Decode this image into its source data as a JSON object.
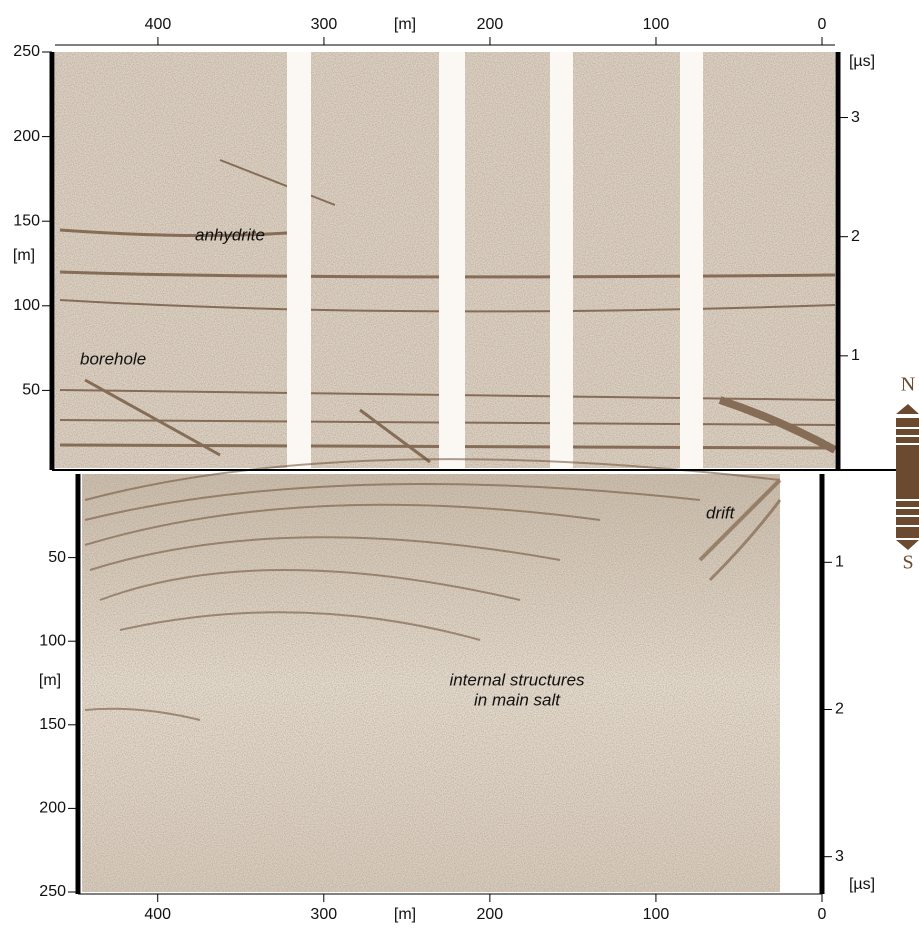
{
  "top_panel": {
    "x_axis": {
      "label": "[m]",
      "lim": [
        462,
        0
      ],
      "ticks": [
        400,
        300,
        200,
        100,
        0
      ]
    },
    "y_axis": {
      "label": "[m]",
      "lim": [
        250,
        0
      ],
      "ticks": [
        250,
        200,
        150,
        100,
        50
      ]
    },
    "y2_axis": {
      "label": "[µs]",
      "lim": [
        3.55,
        0
      ],
      "ticks": [
        3,
        2,
        1
      ]
    },
    "annotations": [
      "anhydrite",
      "borehole"
    ]
  },
  "bottom_panel": {
    "x_axis": {
      "label": "[m]",
      "lim": [
        448,
        0
      ],
      "ticks": [
        400,
        300,
        200,
        100,
        0
      ]
    },
    "y_axis": {
      "label": "[m]",
      "lim": [
        0,
        250
      ],
      "ticks": [
        50,
        100,
        150,
        200,
        250
      ]
    },
    "y2_axis": {
      "label": "[µs]",
      "lim": [
        0.4,
        3.24
      ],
      "ticks": [
        1,
        2,
        3
      ]
    },
    "annotations": [
      "drift",
      "internal structures",
      "in main salt"
    ]
  },
  "compass": {
    "north": "N",
    "south": "S"
  }
}
